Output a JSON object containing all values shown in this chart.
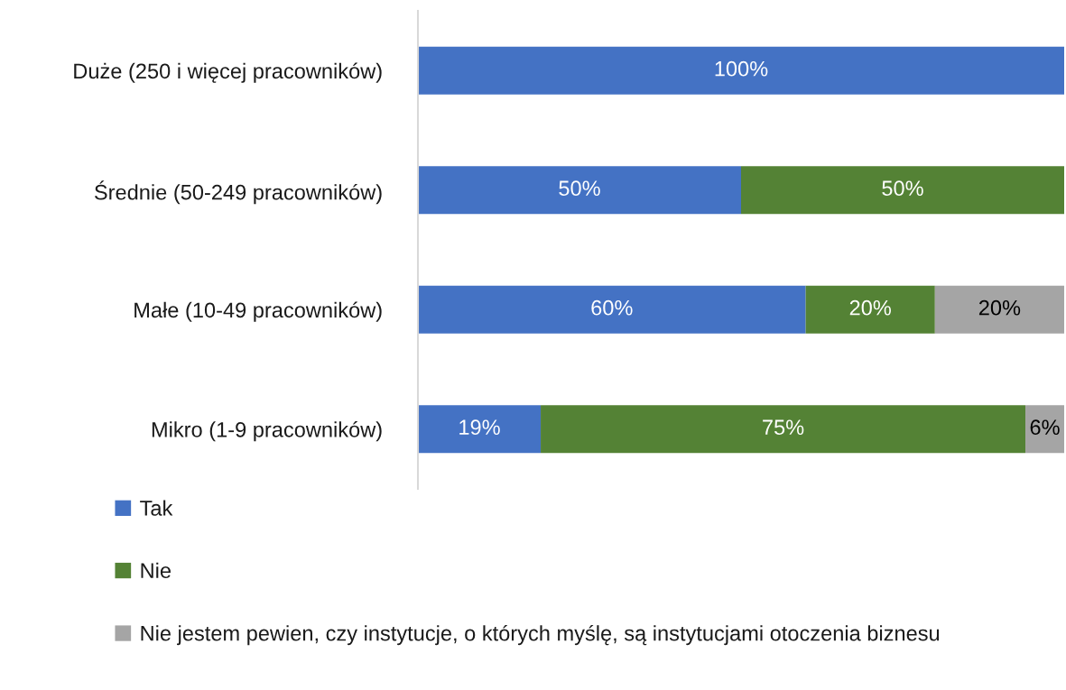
{
  "chart_data": {
    "type": "bar",
    "orientation": "horizontal",
    "stacked": true,
    "categories": [
      "Duże (250 i więcej pracowników)",
      "Średnie (50-249 pracowników)",
      "Małe (10-49 pracowników)",
      "Mikro (1-9 pracowników)"
    ],
    "xlim": [
      0,
      100
    ],
    "tick_labels": "y",
    "legend": "bottom",
    "series": [
      {
        "name": "Tak",
        "color": "#4472c4",
        "values": [
          100,
          50,
          60,
          19
        ],
        "value_labels": [
          "100%",
          "50%",
          "60%",
          "19%"
        ]
      },
      {
        "name": "Nie",
        "color": "#548235",
        "values": [
          null,
          50,
          20,
          75
        ],
        "value_labels": [
          null,
          "50%",
          "20%",
          "75%"
        ]
      },
      {
        "name": "Nie jestem pewien, czy instytucje, o których myślę, są instytucjami otoczenia biznesu",
        "color": "#a5a5a5",
        "values": [
          null,
          null,
          20,
          6
        ],
        "value_labels": [
          null,
          null,
          "20%",
          "6%"
        ]
      }
    ]
  }
}
